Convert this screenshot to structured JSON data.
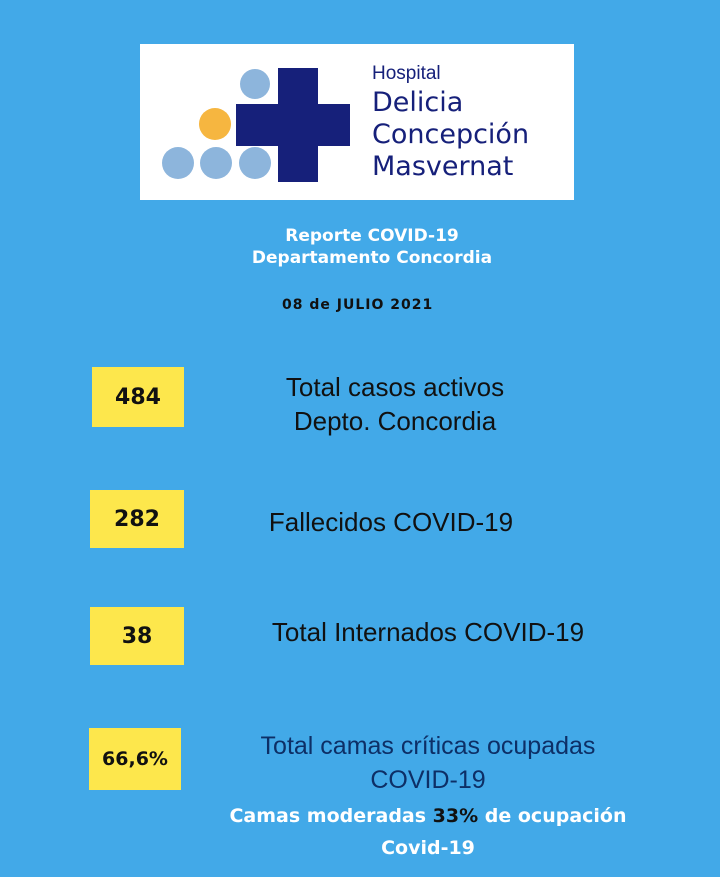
{
  "logo": {
    "hospital": "Hospital",
    "line1": "Delicia",
    "line2": "Concepción",
    "line3": "Masvernat",
    "colors": {
      "navy": "#16207a",
      "dots": "#8db5dc",
      "accent_dot": "#f6b640"
    }
  },
  "header": {
    "title": "Reporte  COVID-19",
    "subtitle": "Departamento Concordia",
    "date": "08 de JULIO 2021"
  },
  "stats": [
    {
      "value": "484",
      "label_line1": "Total casos activos",
      "label_line2": "Depto. Concordia"
    },
    {
      "value": "282",
      "label_line1": "Fallecidos  COVID-19"
    },
    {
      "value": "38",
      "label_line1": "Total Internados COVID-19"
    },
    {
      "value": "66,6%",
      "label_line1": "Total camas críticas ocupadas",
      "label_line2": "COVID-19"
    }
  ],
  "note": {
    "before": "Camas moderadas ",
    "pct": "33%",
    "after": " de ocupación",
    "line2": "Covid-19"
  },
  "colors": {
    "background": "#42a9e8",
    "badge": "#fde74c"
  }
}
